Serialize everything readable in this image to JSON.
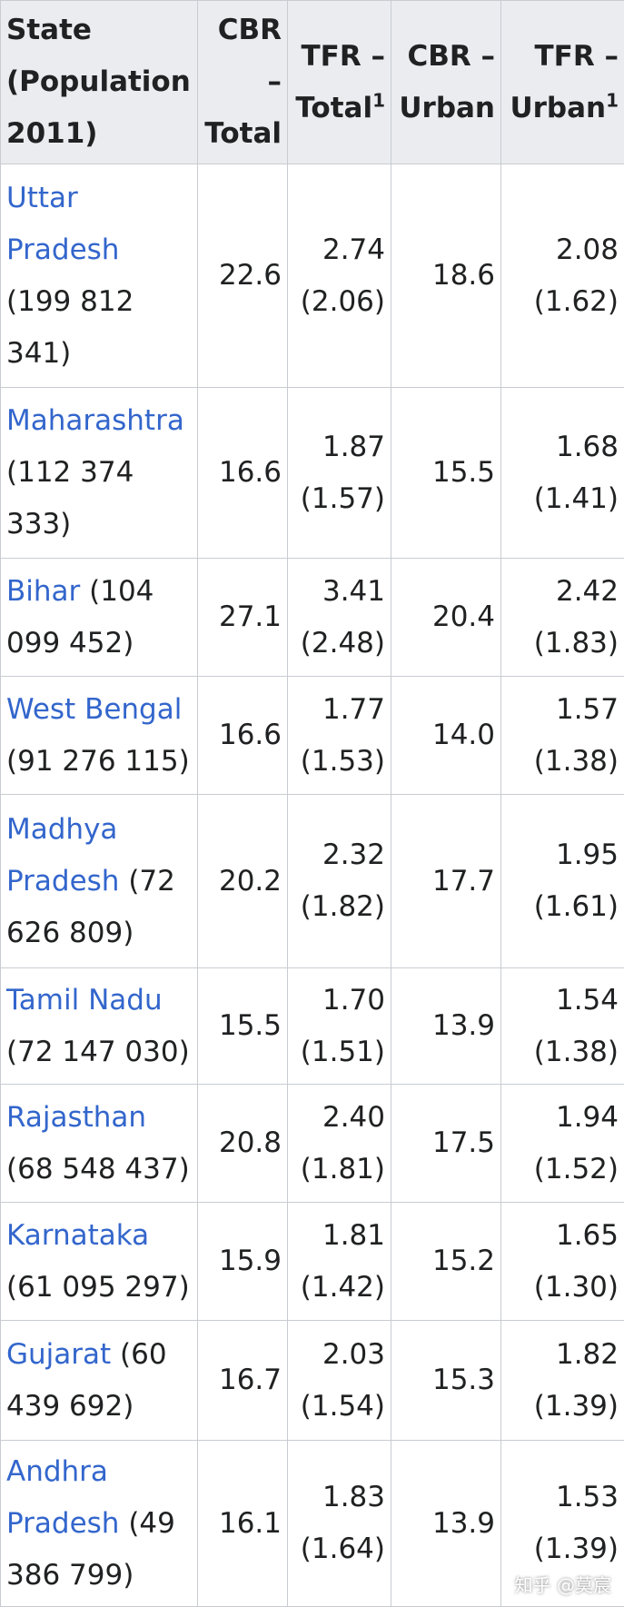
{
  "table": {
    "header": [
      {
        "text": "State (Population 2011)"
      },
      {
        "text": "CBR – Total"
      },
      {
        "text": "TFR – Total",
        "sup": "1"
      },
      {
        "text": "CBR – Urban"
      },
      {
        "text": "TFR – Urban",
        "sup": "1"
      }
    ],
    "rows": [
      {
        "state": "Uttar Pradesh",
        "pop": "(199 812 341)",
        "cbr_total": "22.6",
        "tfr_total": "2.74",
        "tfr_total_alt": "(2.06)",
        "cbr_urban": "18.6",
        "tfr_urban": "2.08",
        "tfr_urban_alt": "(1.62)"
      },
      {
        "state": "Maharashtra",
        "pop": "(112 374 333)",
        "cbr_total": "16.6",
        "tfr_total": "1.87",
        "tfr_total_alt": "(1.57)",
        "cbr_urban": "15.5",
        "tfr_urban": "1.68",
        "tfr_urban_alt": "(1.41)"
      },
      {
        "state": "Bihar",
        "pop": "(104 099 452)",
        "cbr_total": "27.1",
        "tfr_total": "3.41",
        "tfr_total_alt": "(2.48)",
        "cbr_urban": "20.4",
        "tfr_urban": "2.42",
        "tfr_urban_alt": "(1.83)"
      },
      {
        "state": "West Bengal",
        "pop": "(91 276 115)",
        "cbr_total": "16.6",
        "tfr_total": "1.77",
        "tfr_total_alt": "(1.53)",
        "cbr_urban": "14.0",
        "tfr_urban": "1.57",
        "tfr_urban_alt": "(1.38)"
      },
      {
        "state": "Madhya Pradesh",
        "pop": "(72 626 809)",
        "cbr_total": "20.2",
        "tfr_total": "2.32",
        "tfr_total_alt": "(1.82)",
        "cbr_urban": "17.7",
        "tfr_urban": "1.95",
        "tfr_urban_alt": "(1.61)"
      },
      {
        "state": "Tamil Nadu",
        "pop": "(72 147 030)",
        "cbr_total": "15.5",
        "tfr_total": "1.70",
        "tfr_total_alt": "(1.51)",
        "cbr_urban": "13.9",
        "tfr_urban": "1.54",
        "tfr_urban_alt": "(1.38)"
      },
      {
        "state": "Rajasthan",
        "pop": "(68 548 437)",
        "cbr_total": "20.8",
        "tfr_total": "2.40",
        "tfr_total_alt": "(1.81)",
        "cbr_urban": "17.5",
        "tfr_urban": "1.94",
        "tfr_urban_alt": "(1.52)"
      },
      {
        "state": "Karnataka",
        "pop": "(61 095 297)",
        "cbr_total": "15.9",
        "tfr_total": "1.81",
        "tfr_total_alt": "(1.42)",
        "cbr_urban": "15.2",
        "tfr_urban": "1.65",
        "tfr_urban_alt": "(1.30)"
      },
      {
        "state": "Gujarat",
        "pop": "(60 439 692)",
        "cbr_total": "16.7",
        "tfr_total": "2.03",
        "tfr_total_alt": "(1.54)",
        "cbr_urban": "15.3",
        "tfr_urban": "1.82",
        "tfr_urban_alt": "(1.39)"
      },
      {
        "state": "Andhra Pradesh",
        "pop": "(49 386 799)",
        "cbr_total": "16.1",
        "tfr_total": "1.83",
        "tfr_total_alt": "(1.64)",
        "cbr_urban": "13.9",
        "tfr_urban": "1.53",
        "tfr_urban_alt": "(1.39)"
      }
    ]
  },
  "watermark": "知乎 @莫宸"
}
